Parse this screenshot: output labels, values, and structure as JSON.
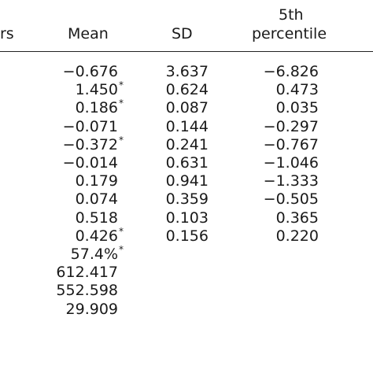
{
  "table": {
    "headers": {
      "partial_left": "rs",
      "mean": "Mean",
      "sd": "SD",
      "p5_line1": "5th",
      "p5_line2": "percentile"
    },
    "rows": [
      {
        "mean": "−0.676",
        "mean_star": false,
        "sd": "3.637",
        "p5": "−6.826"
      },
      {
        "mean": "1.450",
        "mean_star": true,
        "sd": "0.624",
        "p5": "0.473"
      },
      {
        "mean": "0.186",
        "mean_star": true,
        "sd": "0.087",
        "p5": "0.035"
      },
      {
        "mean": "−0.071",
        "mean_star": false,
        "sd": "0.144",
        "p5": "−0.297"
      },
      {
        "mean": "−0.372",
        "mean_star": true,
        "sd": "0.241",
        "p5": "−0.767"
      },
      {
        "mean": "−0.014",
        "mean_star": false,
        "sd": "0.631",
        "p5": "−1.046"
      },
      {
        "mean": "0.179",
        "mean_star": false,
        "sd": "0.941",
        "p5": "−1.333"
      },
      {
        "mean": "0.074",
        "mean_star": false,
        "sd": "0.359",
        "p5": "−0.505"
      },
      {
        "mean": "0.518",
        "mean_star": false,
        "sd": "0.103",
        "p5": "0.365"
      },
      {
        "mean": "0.426",
        "mean_star": true,
        "sd": "0.156",
        "p5": "0.220"
      },
      {
        "mean": "57.4%",
        "mean_star": true,
        "sd": "",
        "p5": ""
      },
      {
        "mean": "612.417",
        "mean_star": false,
        "sd": "",
        "p5": ""
      },
      {
        "mean": "552.598",
        "mean_star": false,
        "sd": "",
        "p5": ""
      },
      {
        "mean": "29.909",
        "mean_star": false,
        "sd": "",
        "p5": ""
      }
    ],
    "star_symbol": "*"
  }
}
